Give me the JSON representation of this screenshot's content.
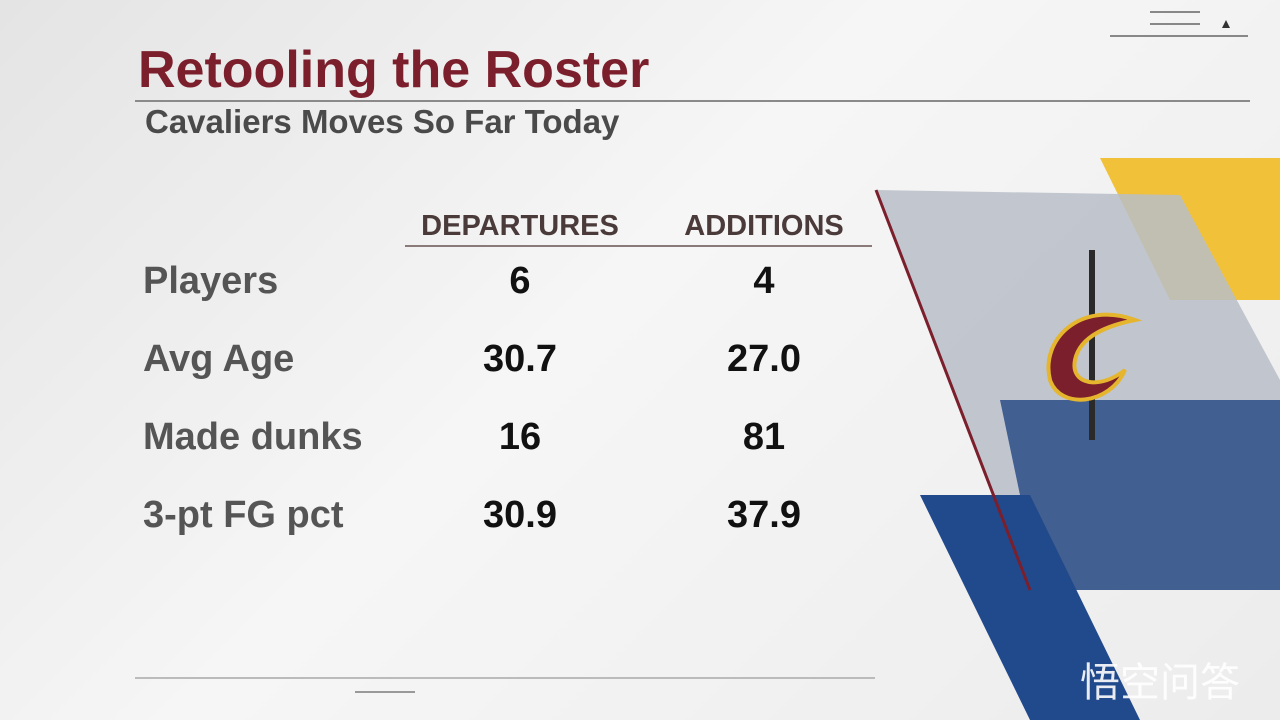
{
  "header": {
    "title": "Retooling the Roster",
    "subtitle": "Cavaliers Moves So Far Today"
  },
  "table": {
    "columns": [
      "DEPARTURES",
      "ADDITIONS"
    ],
    "rows": [
      [
        "Players",
        "6",
        "4"
      ],
      [
        "Avg Age",
        "30.7",
        "27.0"
      ],
      [
        "Made dunks",
        "16",
        "81"
      ],
      [
        "3-pt FG pct",
        "30.9",
        "37.9"
      ]
    ]
  },
  "watermark": "悟空问答"
}
